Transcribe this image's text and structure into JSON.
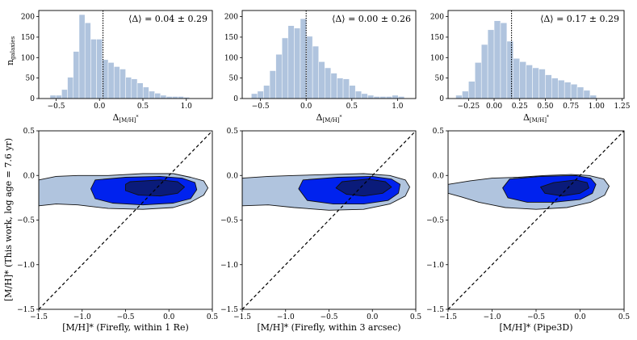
{
  "figure": {
    "top_ylabel": "n",
    "top_ylabel_sub": "galaxies",
    "top_xlabel": "Δ",
    "top_xlabel_sub": "[M/H]",
    "top_xlabel_sup": "*",
    "bottom_ylabel": "[M/H]* (This work, log age = 7.6 yr)"
  },
  "chart_data": [
    {
      "type": "bar",
      "panel": "histogram-1",
      "bin_width": 0.067,
      "bin_starts": [
        -0.57,
        -0.503,
        -0.436,
        -0.369,
        -0.302,
        -0.235,
        -0.168,
        -0.101,
        -0.034,
        0.033,
        0.1,
        0.167,
        0.234,
        0.301,
        0.368,
        0.435,
        0.502,
        0.569,
        0.636,
        0.703,
        0.77,
        0.837,
        0.904,
        0.971
      ],
      "values": [
        8,
        8,
        22,
        52,
        115,
        205,
        185,
        145,
        145,
        95,
        88,
        78,
        72,
        52,
        48,
        38,
        28,
        18,
        13,
        8,
        5,
        5,
        5,
        3
      ],
      "xlim": [
        -0.7,
        1.3
      ],
      "ylim": [
        0,
        215
      ],
      "xticks": [
        -0.5,
        0.0,
        0.5,
        1.0
      ],
      "xtick_labels": [
        "−0.5",
        "0.0",
        "0.5",
        "1.0"
      ],
      "yticks": [
        0,
        50,
        100,
        150,
        200
      ],
      "ytick_labels": [
        "0",
        "50",
        "100",
        "150",
        "200"
      ],
      "mean_line": 0.04,
      "annotation": "⟨Δ⟩ = 0.04 ± 0.29",
      "bar_color": "#b0c4de"
    },
    {
      "type": "bar",
      "panel": "histogram-2",
      "bin_width": 0.067,
      "bin_starts": [
        -0.6,
        -0.533,
        -0.466,
        -0.399,
        -0.332,
        -0.265,
        -0.198,
        -0.131,
        -0.064,
        0.003,
        0.07,
        0.137,
        0.204,
        0.271,
        0.338,
        0.405,
        0.472,
        0.539,
        0.606,
        0.673,
        0.74,
        0.807,
        0.874,
        0.941,
        1.008
      ],
      "values": [
        12,
        18,
        32,
        68,
        108,
        148,
        178,
        172,
        195,
        152,
        128,
        90,
        75,
        62,
        50,
        48,
        32,
        18,
        12,
        8,
        5,
        5,
        5,
        8,
        5
      ],
      "xlim": [
        -0.7,
        1.2
      ],
      "ylim": [
        0,
        215
      ],
      "xticks": [
        -0.5,
        0.0,
        0.5,
        1.0
      ],
      "xtick_labels": [
        "−0.5",
        "0.0",
        "0.5",
        "1.0"
      ],
      "yticks": [
        0,
        50,
        100,
        150,
        200
      ],
      "ytick_labels": [
        "0",
        "50",
        "100",
        "150",
        "200"
      ],
      "mean_line": 0.0,
      "annotation": "⟨Δ⟩ = 0.00 ± 0.26",
      "bar_color": "#b0c4de"
    },
    {
      "type": "bar",
      "panel": "histogram-3",
      "bin_width": 0.0625,
      "bin_starts": [
        -0.375,
        -0.3125,
        -0.25,
        -0.1875,
        -0.125,
        -0.0625,
        0.0,
        0.0625,
        0.125,
        0.1875,
        0.25,
        0.3125,
        0.375,
        0.4375,
        0.5,
        0.5625,
        0.625,
        0.6875,
        0.75,
        0.8125,
        0.875,
        0.9375
      ],
      "values": [
        8,
        18,
        42,
        88,
        132,
        168,
        190,
        185,
        140,
        98,
        90,
        82,
        75,
        72,
        58,
        50,
        45,
        40,
        35,
        28,
        20,
        8
      ],
      "xlim": [
        -0.45,
        1.27
      ],
      "ylim": [
        0,
        215
      ],
      "xticks": [
        -0.25,
        0.0,
        0.25,
        0.5,
        0.75,
        1.0,
        1.25
      ],
      "xtick_labels": [
        "−0.25",
        "0.00",
        "0.25",
        "0.50",
        "0.75",
        "1.00",
        "1.25"
      ],
      "yticks": [
        0,
        50,
        100,
        150,
        200
      ],
      "ytick_labels": [
        "0",
        "50",
        "100",
        "150",
        "200"
      ],
      "mean_line": 0.17,
      "annotation": "⟨Δ⟩ = 0.17 ± 0.29",
      "bar_color": "#b0c4de"
    },
    {
      "type": "contour",
      "panel": "contour-1",
      "xlabel": "[M/H]* (Firefly, within 1 Re)",
      "xlim": [
        -1.5,
        0.5
      ],
      "ylim": [
        -1.5,
        0.5
      ],
      "xticks": [
        -1.5,
        -1.0,
        -0.5,
        0.0,
        0.5
      ],
      "xtick_labels": [
        "−1.5",
        "−1.0",
        "−0.5",
        "0.0",
        "0.5"
      ],
      "yticks": [
        -1.5,
        -1.0,
        -0.5,
        0.0,
        0.5
      ],
      "ytick_labels": [
        "−1.5",
        "−1.0",
        "−0.5",
        "0.0",
        "0.5"
      ],
      "one_to_one_line": true,
      "levels": [
        {
          "color": "#b0c4de",
          "points": [
            [
              -1.5,
              -0.05
            ],
            [
              -1.3,
              -0.01
            ],
            [
              -1.05,
              0.0
            ],
            [
              -0.7,
              0.0
            ],
            [
              -0.3,
              0.02
            ],
            [
              0.05,
              0.02
            ],
            [
              0.25,
              -0.02
            ],
            [
              0.4,
              -0.06
            ],
            [
              0.45,
              -0.14
            ],
            [
              0.4,
              -0.22
            ],
            [
              0.25,
              -0.3
            ],
            [
              0.05,
              -0.36
            ],
            [
              -0.3,
              -0.38
            ],
            [
              -0.7,
              -0.37
            ],
            [
              -1.05,
              -0.33
            ],
            [
              -1.3,
              -0.32
            ],
            [
              -1.5,
              -0.34
            ]
          ]
        },
        {
          "color": "#0022ee",
          "points": [
            [
              -0.85,
              -0.05
            ],
            [
              -0.5,
              -0.02
            ],
            [
              -0.1,
              -0.01
            ],
            [
              0.15,
              -0.03
            ],
            [
              0.3,
              -0.08
            ],
            [
              0.32,
              -0.16
            ],
            [
              0.25,
              -0.26
            ],
            [
              0.05,
              -0.31
            ],
            [
              -0.3,
              -0.33
            ],
            [
              -0.65,
              -0.31
            ],
            [
              -0.85,
              -0.26
            ],
            [
              -0.9,
              -0.15
            ]
          ]
        },
        {
          "color": "#0a1b7a",
          "points": [
            [
              -0.45,
              -0.07
            ],
            [
              -0.1,
              -0.05
            ],
            [
              0.1,
              -0.07
            ],
            [
              0.18,
              -0.13
            ],
            [
              0.1,
              -0.2
            ],
            [
              -0.1,
              -0.23
            ],
            [
              -0.35,
              -0.22
            ],
            [
              -0.5,
              -0.17
            ],
            [
              -0.5,
              -0.1
            ]
          ]
        }
      ]
    },
    {
      "type": "contour",
      "panel": "contour-2",
      "xlabel": "[M/H]* (Firefly, within 3 arcsec)",
      "xlim": [
        -1.5,
        0.5
      ],
      "ylim": [
        -1.5,
        0.5
      ],
      "xticks": [
        -1.5,
        -1.0,
        -0.5,
        0.0,
        0.5
      ],
      "xtick_labels": [
        "−1.5",
        "−1.0",
        "−0.5",
        "0.0",
        "0.5"
      ],
      "yticks": [
        -1.5,
        -1.0,
        -0.5,
        0.0,
        0.5
      ],
      "ytick_labels": [
        "−1.5",
        "−1.0",
        "−0.5",
        "0.0",
        "0.5"
      ],
      "one_to_one_line": true,
      "levels": [
        {
          "color": "#b0c4de",
          "points": [
            [
              -1.5,
              -0.03
            ],
            [
              -1.2,
              -0.01
            ],
            [
              -0.9,
              0.0
            ],
            [
              -0.5,
              0.01
            ],
            [
              -0.1,
              0.02
            ],
            [
              0.2,
              0.0
            ],
            [
              0.38,
              -0.05
            ],
            [
              0.43,
              -0.13
            ],
            [
              0.38,
              -0.23
            ],
            [
              0.2,
              -0.32
            ],
            [
              -0.1,
              -0.38
            ],
            [
              -0.5,
              -0.39
            ],
            [
              -0.9,
              -0.36
            ],
            [
              -1.2,
              -0.33
            ],
            [
              -1.5,
              -0.34
            ]
          ]
        },
        {
          "color": "#0022ee",
          "points": [
            [
              -0.8,
              -0.05
            ],
            [
              -0.4,
              -0.02
            ],
            [
              0.0,
              -0.01
            ],
            [
              0.22,
              -0.04
            ],
            [
              0.32,
              -0.1
            ],
            [
              0.3,
              -0.2
            ],
            [
              0.18,
              -0.28
            ],
            [
              -0.1,
              -0.32
            ],
            [
              -0.45,
              -0.32
            ],
            [
              -0.75,
              -0.28
            ],
            [
              -0.85,
              -0.15
            ]
          ]
        },
        {
          "color": "#0a1b7a",
          "points": [
            [
              -0.35,
              -0.07
            ],
            [
              -0.05,
              -0.04
            ],
            [
              0.15,
              -0.07
            ],
            [
              0.22,
              -0.13
            ],
            [
              0.12,
              -0.2
            ],
            [
              -0.1,
              -0.23
            ],
            [
              -0.3,
              -0.21
            ],
            [
              -0.42,
              -0.14
            ]
          ]
        }
      ]
    },
    {
      "type": "contour",
      "panel": "contour-3",
      "xlabel": "[M/H]* (Pipe3D)",
      "xlim": [
        -1.5,
        0.5
      ],
      "ylim": [
        -1.5,
        0.5
      ],
      "xticks": [
        -1.5,
        -1.0,
        -0.5,
        0.0,
        0.5
      ],
      "xtick_labels": [
        "−1.5",
        "−1.0",
        "−0.5",
        "0.0",
        "0.5"
      ],
      "yticks": [
        -1.5,
        -1.0,
        -0.5,
        0.0,
        0.5
      ],
      "ytick_labels": [
        "−1.5",
        "−1.0",
        "−0.5",
        "0.0",
        "0.5"
      ],
      "one_to_one_line": true,
      "levels": [
        {
          "color": "#b0c4de",
          "points": [
            [
              -1.5,
              -0.1
            ],
            [
              -1.25,
              -0.06
            ],
            [
              -1.0,
              -0.03
            ],
            [
              -0.7,
              -0.02
            ],
            [
              -0.4,
              0.0
            ],
            [
              -0.1,
              0.01
            ],
            [
              0.1,
              0.0
            ],
            [
              0.27,
              -0.04
            ],
            [
              0.33,
              -0.12
            ],
            [
              0.28,
              -0.22
            ],
            [
              0.12,
              -0.3
            ],
            [
              -0.15,
              -0.36
            ],
            [
              -0.5,
              -0.38
            ],
            [
              -0.85,
              -0.36
            ],
            [
              -1.15,
              -0.3
            ],
            [
              -1.35,
              -0.24
            ],
            [
              -1.5,
              -0.2
            ]
          ]
        },
        {
          "color": "#0022ee",
          "points": [
            [
              -0.8,
              -0.04
            ],
            [
              -0.45,
              -0.01
            ],
            [
              -0.05,
              0.0
            ],
            [
              0.12,
              -0.03
            ],
            [
              0.18,
              -0.1
            ],
            [
              0.14,
              -0.2
            ],
            [
              0.0,
              -0.27
            ],
            [
              -0.3,
              -0.3
            ],
            [
              -0.6,
              -0.3
            ],
            [
              -0.82,
              -0.25
            ],
            [
              -0.88,
              -0.14
            ]
          ]
        },
        {
          "color": "#0a1b7a",
          "points": [
            [
              -0.3,
              -0.08
            ],
            [
              -0.05,
              -0.05
            ],
            [
              0.08,
              -0.08
            ],
            [
              0.1,
              -0.14
            ],
            [
              0.0,
              -0.2
            ],
            [
              -0.2,
              -0.23
            ],
            [
              -0.4,
              -0.2
            ],
            [
              -0.45,
              -0.13
            ]
          ]
        }
      ]
    }
  ]
}
